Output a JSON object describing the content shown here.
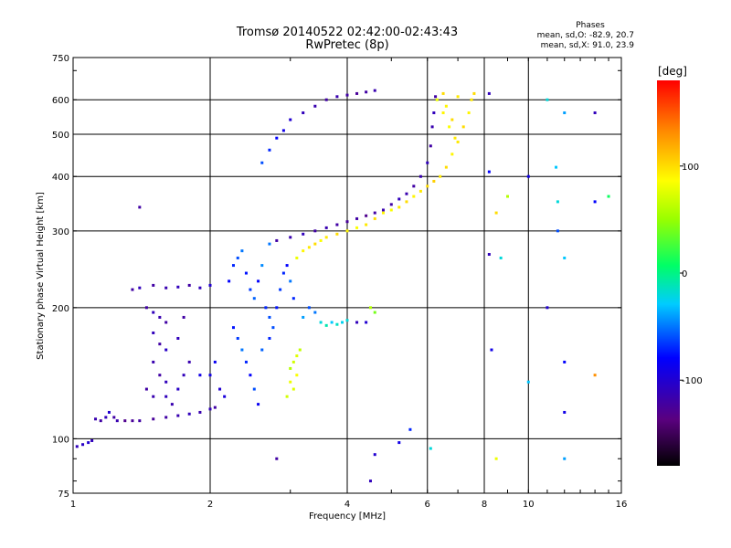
{
  "chart_data": {
    "type": "scatter",
    "title": "Tromsø 20140522 02:42:00-02:43:43",
    "subtitle": "RwPretec (8p)",
    "xlabel": "Frequency [MHz]",
    "ylabel": "Stationary phase Virtual Height [km]",
    "x_scale": "log",
    "y_scale": "log",
    "xlim": [
      1,
      16
    ],
    "ylim": [
      75,
      750
    ],
    "x_ticks": [
      {
        "value": 1,
        "label": "1"
      },
      {
        "value": 2,
        "label": "2"
      },
      {
        "value": 4,
        "label": "4"
      },
      {
        "value": 6,
        "label": "6"
      },
      {
        "value": 8,
        "label": "8"
      },
      {
        "value": 10,
        "label": "10"
      },
      {
        "value": 16,
        "label": "16"
      }
    ],
    "y_ticks": [
      {
        "value": 75,
        "label": "75"
      },
      {
        "value": 100,
        "label": "100"
      },
      {
        "value": 200,
        "label": "200"
      },
      {
        "value": 300,
        "label": "300"
      },
      {
        "value": 400,
        "label": "400"
      },
      {
        "value": 500,
        "label": "500"
      },
      {
        "value": 600,
        "label": "600"
      },
      {
        "value": 750,
        "label": "750"
      }
    ],
    "grid": true,
    "stats": {
      "heading": "Phases",
      "line1": "mean, sd,O: -82.9, 20.7",
      "line2": "mean, sd,X:  91.0, 23.9"
    },
    "colorbar": {
      "label": "[deg]",
      "range": [
        -180,
        180
      ],
      "ticks": [
        {
          "value": 100,
          "label": "100"
        },
        {
          "value": 0,
          "label": "0"
        },
        {
          "value": -100,
          "label": "-100"
        }
      ]
    },
    "series": [
      {
        "points": [
          [
            1.02,
            96,
            -110
          ],
          [
            1.05,
            97,
            -105
          ],
          [
            1.08,
            98,
            -100
          ],
          [
            1.1,
            99,
            -110
          ],
          [
            1.12,
            111,
            -115
          ],
          [
            1.15,
            110,
            -120
          ],
          [
            1.18,
            112,
            -110
          ],
          [
            1.2,
            115,
            -100
          ],
          [
            1.23,
            112,
            -120
          ],
          [
            1.25,
            110,
            -115
          ],
          [
            1.3,
            110,
            -130
          ],
          [
            1.35,
            110,
            -125
          ],
          [
            1.4,
            110,
            -120
          ],
          [
            1.5,
            111,
            -125
          ],
          [
            1.6,
            112,
            -120
          ],
          [
            1.7,
            113,
            -115
          ],
          [
            1.8,
            114,
            -110
          ],
          [
            1.9,
            115,
            -115
          ],
          [
            2.0,
            117,
            -110
          ],
          [
            2.05,
            118,
            -120
          ],
          [
            1.35,
            220,
            -120
          ],
          [
            1.4,
            222,
            -110
          ],
          [
            1.5,
            225,
            -120
          ],
          [
            1.6,
            222,
            -115
          ],
          [
            1.7,
            223,
            -110
          ],
          [
            1.8,
            225,
            -120
          ],
          [
            1.9,
            222,
            -110
          ],
          [
            2.0,
            225,
            -100
          ],
          [
            1.45,
            200,
            -120
          ],
          [
            1.5,
            195,
            -110
          ],
          [
            1.55,
            190,
            -115
          ],
          [
            1.6,
            185,
            -120
          ],
          [
            1.5,
            175,
            -110
          ],
          [
            1.55,
            165,
            -120
          ],
          [
            1.6,
            160,
            -105
          ],
          [
            1.5,
            150,
            -115
          ],
          [
            1.55,
            140,
            -120
          ],
          [
            1.6,
            135,
            -110
          ],
          [
            1.45,
            130,
            -120
          ],
          [
            1.5,
            125,
            -115
          ],
          [
            1.6,
            125,
            -110
          ],
          [
            1.65,
            120,
            -115
          ],
          [
            1.7,
            130,
            -105
          ],
          [
            1.75,
            140,
            -110
          ],
          [
            1.8,
            150,
            -115
          ],
          [
            1.7,
            170,
            -110
          ],
          [
            1.75,
            190,
            -120
          ],
          [
            2.0,
            140,
            -90
          ],
          [
            2.05,
            150,
            -85
          ],
          [
            2.1,
            130,
            -100
          ],
          [
            2.15,
            125,
            -95
          ],
          [
            2.2,
            230,
            -80
          ],
          [
            2.25,
            250,
            -70
          ],
          [
            2.3,
            260,
            -60
          ],
          [
            2.35,
            270,
            -50
          ],
          [
            2.4,
            240,
            -75
          ],
          [
            2.45,
            220,
            -65
          ],
          [
            2.5,
            210,
            -55
          ],
          [
            2.55,
            230,
            -80
          ],
          [
            2.6,
            250,
            -45
          ],
          [
            2.65,
            200,
            -70
          ],
          [
            2.7,
            190,
            -60
          ],
          [
            2.25,
            180,
            -75
          ],
          [
            2.3,
            170,
            -65
          ],
          [
            2.35,
            160,
            -50
          ],
          [
            2.4,
            150,
            -70
          ],
          [
            2.45,
            140,
            -80
          ],
          [
            2.5,
            130,
            -60
          ],
          [
            2.55,
            120,
            -85
          ],
          [
            2.6,
            160,
            -55
          ],
          [
            2.7,
            170,
            -70
          ],
          [
            2.75,
            180,
            -60
          ],
          [
            2.8,
            200,
            -75
          ],
          [
            2.85,
            220,
            -65
          ],
          [
            2.9,
            240,
            -70
          ],
          [
            2.95,
            250,
            -80
          ],
          [
            3.0,
            230,
            -50
          ],
          [
            3.05,
            210,
            -70
          ],
          [
            2.6,
            430,
            -60
          ],
          [
            2.7,
            460,
            -70
          ],
          [
            2.8,
            490,
            -80
          ],
          [
            2.9,
            510,
            -90
          ],
          [
            3.0,
            540,
            -100
          ],
          [
            3.2,
            560,
            -110
          ],
          [
            3.4,
            580,
            -115
          ],
          [
            3.6,
            600,
            -120
          ],
          [
            3.8,
            610,
            -115
          ],
          [
            4.0,
            615,
            -120
          ],
          [
            4.2,
            620,
            -125
          ],
          [
            4.4,
            625,
            -120
          ],
          [
            4.6,
            630,
            -115
          ],
          [
            2.8,
            285,
            -120
          ],
          [
            3.0,
            290,
            -115
          ],
          [
            3.2,
            295,
            -110
          ],
          [
            3.4,
            300,
            -120
          ],
          [
            3.6,
            305,
            -115
          ],
          [
            3.8,
            310,
            -120
          ],
          [
            4.0,
            315,
            -125
          ],
          [
            4.2,
            320,
            -120
          ],
          [
            4.4,
            325,
            -130
          ],
          [
            4.6,
            330,
            -120
          ],
          [
            4.8,
            335,
            -115
          ],
          [
            5.0,
            345,
            -120
          ],
          [
            5.2,
            355,
            -110
          ],
          [
            5.4,
            365,
            -115
          ],
          [
            5.6,
            380,
            -120
          ],
          [
            5.8,
            400,
            -115
          ],
          [
            6.0,
            430,
            -110
          ],
          [
            6.1,
            470,
            -120
          ],
          [
            6.15,
            520,
            -115
          ],
          [
            6.2,
            560,
            -110
          ],
          [
            6.25,
            610,
            -120
          ],
          [
            3.1,
            260,
            80
          ],
          [
            3.2,
            270,
            90
          ],
          [
            3.3,
            275,
            95
          ],
          [
            3.4,
            280,
            100
          ],
          [
            3.5,
            285,
            85
          ],
          [
            3.6,
            290,
            95
          ],
          [
            3.8,
            295,
            100
          ],
          [
            4.0,
            300,
            90
          ],
          [
            4.2,
            305,
            85
          ],
          [
            4.4,
            310,
            95
          ],
          [
            4.6,
            320,
            100
          ],
          [
            4.8,
            330,
            90
          ],
          [
            5.0,
            335,
            85
          ],
          [
            5.2,
            340,
            95
          ],
          [
            5.4,
            350,
            100
          ],
          [
            5.6,
            360,
            90
          ],
          [
            5.8,
            370,
            95
          ],
          [
            6.0,
            380,
            100
          ],
          [
            6.2,
            390,
            105
          ],
          [
            6.4,
            400,
            95
          ],
          [
            6.6,
            420,
            100
          ],
          [
            6.8,
            450,
            90
          ],
          [
            7.0,
            480,
            95
          ],
          [
            7.2,
            520,
            100
          ],
          [
            7.4,
            560,
            90
          ],
          [
            7.5,
            600,
            95
          ],
          [
            7.6,
            620,
            100
          ],
          [
            6.3,
            600,
            80
          ],
          [
            6.5,
            560,
            90
          ],
          [
            6.7,
            520,
            85
          ],
          [
            6.9,
            490,
            95
          ],
          [
            6.5,
            620,
            100
          ],
          [
            7.0,
            610,
            95
          ],
          [
            6.6,
            580,
            90
          ],
          [
            6.8,
            540,
            100
          ],
          [
            3.0,
            145,
            60
          ],
          [
            3.05,
            150,
            70
          ],
          [
            3.1,
            155,
            75
          ],
          [
            3.15,
            160,
            65
          ],
          [
            3.0,
            135,
            80
          ],
          [
            3.05,
            130,
            75
          ],
          [
            2.95,
            125,
            70
          ],
          [
            3.1,
            140,
            85
          ],
          [
            3.5,
            185,
            -20
          ],
          [
            3.6,
            182,
            -10
          ],
          [
            3.7,
            185,
            -30
          ],
          [
            3.8,
            183,
            -15
          ],
          [
            3.9,
            185,
            -25
          ],
          [
            4.0,
            187,
            -20
          ],
          [
            4.2,
            185,
            -110
          ],
          [
            4.4,
            185,
            -100
          ],
          [
            3.3,
            200,
            -60
          ],
          [
            3.4,
            195,
            -50
          ],
          [
            3.2,
            190,
            -40
          ],
          [
            4.5,
            200,
            60
          ],
          [
            4.6,
            195,
            40
          ],
          [
            8.2,
            620,
            -110
          ],
          [
            8.2,
            410,
            -80
          ],
          [
            8.2,
            265,
            -110
          ],
          [
            8.3,
            160,
            -90
          ],
          [
            8.5,
            90,
            80
          ],
          [
            8.5,
            330,
            100
          ],
          [
            8.7,
            260,
            -20
          ],
          [
            9.0,
            360,
            60
          ],
          [
            10.0,
            400,
            -90
          ],
          [
            10.0,
            135,
            -30
          ],
          [
            11.0,
            200,
            -100
          ],
          [
            11.0,
            600,
            -20
          ],
          [
            11.5,
            420,
            -30
          ],
          [
            11.6,
            350,
            -20
          ],
          [
            11.6,
            300,
            -60
          ],
          [
            12.0,
            90,
            -40
          ],
          [
            12.0,
            560,
            -40
          ],
          [
            12.0,
            260,
            -30
          ],
          [
            12.0,
            150,
            -80
          ],
          [
            12.0,
            115,
            -90
          ],
          [
            14.0,
            560,
            -110
          ],
          [
            14.0,
            140,
            130
          ],
          [
            14.0,
            350,
            -80
          ],
          [
            15.0,
            360,
            10
          ],
          [
            4.5,
            80,
            -110
          ],
          [
            4.6,
            92,
            -100
          ],
          [
            5.2,
            98,
            -90
          ],
          [
            5.5,
            105,
            -70
          ],
          [
            6.1,
            95,
            -20
          ],
          [
            1.9,
            140,
            -90
          ],
          [
            1.4,
            340,
            -120
          ],
          [
            2.7,
            280,
            -50
          ],
          [
            2.8,
            90,
            -120
          ]
        ]
      }
    ]
  }
}
